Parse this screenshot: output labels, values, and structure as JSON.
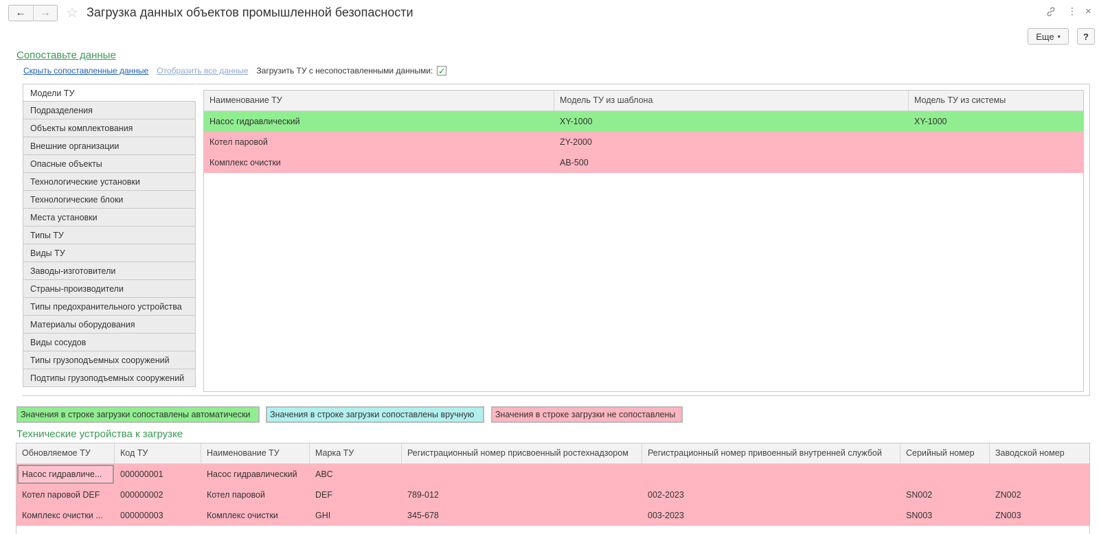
{
  "window": {
    "title": "Загрузка данных объектов промышленной безопасности",
    "back_icon": "←",
    "forward_icon": "→",
    "star_icon": "☆",
    "link_icon": "🔗",
    "more_icon": "⋮",
    "close_icon": "×",
    "more_button": "Еще",
    "more_chevron": "▾",
    "help_button": "?"
  },
  "mapping": {
    "title": "Сопоставьте данные",
    "hide_matched_link": "Скрыть сопоставленные данные",
    "show_all_link": "Отобразить все данные",
    "load_unmatched_label": "Загрузить ТУ с несопоставленными данными:",
    "load_unmatched_checked": "✓",
    "tabs": [
      "Модели ТУ",
      "Подразделения",
      "Объекты комплектования",
      "Внешние организации",
      "Опасные объекты",
      "Технологические установки",
      "Технологические блоки",
      "Места установки",
      "Типы ТУ",
      "Виды ТУ",
      "Заводы-изготовители",
      "Страны-производители",
      "Типы предохранительного устройства",
      "Материалы оборудования",
      "Виды сосудов",
      "Типы грузоподъемных сооружений",
      "Подтипы грузоподъемных сооружений"
    ],
    "grid": {
      "columns": [
        "Наименование ТУ",
        "Модель ТУ из шаблона",
        "Модель ТУ из системы"
      ],
      "rows": [
        {
          "status": "auto",
          "cells": [
            "Насос гидравлический",
            "XY-1000",
            "XY-1000"
          ]
        },
        {
          "status": "unmatched",
          "cells": [
            "Котел паровой",
            "ZY-2000",
            ""
          ]
        },
        {
          "status": "unmatched",
          "cells": [
            "Комплекс очистки",
            "AB-500",
            ""
          ]
        }
      ]
    }
  },
  "legend": {
    "auto": "Значения в строке загрузки сопоставлены автоматически",
    "manual": "Значения в строке загрузки сопоставлены вручную",
    "unmatched": "Значения в строке загрузки не сопоставлены"
  },
  "colors": {
    "auto": "#90ee90",
    "manual": "#b2f0f0",
    "unmatched": "#ffb6c1",
    "section_title": "#3a9a52",
    "link": "#1f5db5"
  },
  "devices": {
    "title": "Технические устройства к загрузке",
    "columns": [
      "Обновляемое ТУ",
      "Код ТУ",
      "Наименование ТУ",
      "Марка ТУ",
      "Регистрационный номер присвоенный ростехнадзором",
      "Регистрационный номер привоенный внутренней службой",
      "Серийный номер",
      "Заводской номер"
    ],
    "rows": [
      [
        "Насос гидравличе...",
        "000000001",
        "Насос гидравлический",
        "ABC",
        "",
        "",
        "",
        ""
      ],
      [
        "Котел паровой DEF",
        "000000002",
        "Котел паровой",
        "DEF",
        "789-012",
        "002-2023",
        "SN002",
        "ZN002"
      ],
      [
        "Комплекс очистки ...",
        "000000003",
        "Комплекс очистки",
        "GHI",
        "345-678",
        "003-2023",
        "SN003",
        "ZN003"
      ]
    ]
  }
}
